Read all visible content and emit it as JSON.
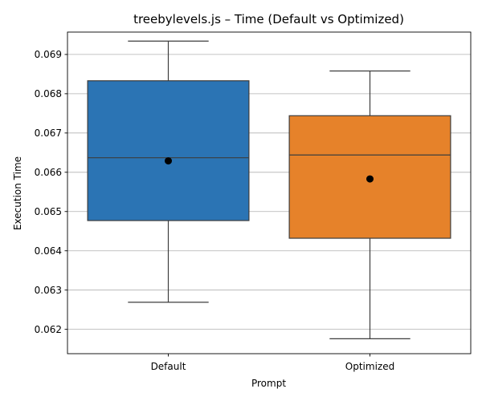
{
  "chart_data": {
    "type": "box",
    "title": "treebylevels.js – Time (Default vs Optimized)",
    "xlabel": "Prompt",
    "ylabel": "Execution Time",
    "ylim": [
      0.06138,
      0.06957
    ],
    "yticks": [
      0.062,
      0.063,
      0.064,
      0.065,
      0.066,
      0.067,
      0.068,
      0.069
    ],
    "ytick_labels": [
      "0.062",
      "0.063",
      "0.064",
      "0.065",
      "0.066",
      "0.067",
      "0.068",
      "0.069"
    ],
    "grid": "y",
    "categories": [
      "Default",
      "Optimized"
    ],
    "boxes": [
      {
        "category": "Default",
        "min": 0.06269,
        "q1": 0.06477,
        "median": 0.06637,
        "q3": 0.06833,
        "max": 0.06934,
        "mean": 0.06629,
        "color": "#2b74b4"
      },
      {
        "category": "Optimized",
        "min": 0.06176,
        "q1": 0.06432,
        "median": 0.06644,
        "q3": 0.06744,
        "max": 0.06858,
        "mean": 0.06583,
        "color": "#e6822a"
      }
    ]
  }
}
